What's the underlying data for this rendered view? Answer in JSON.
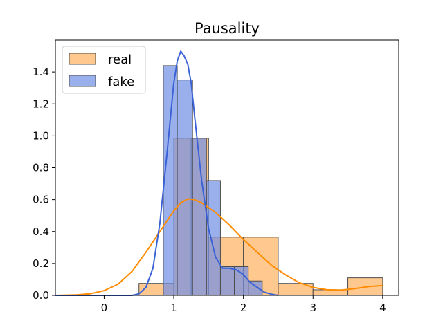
{
  "chart_data": {
    "type": "histogram",
    "title": "Pausality",
    "xlabel": "",
    "ylabel": "",
    "xlim": [
      -0.7,
      4.23
    ],
    "ylim": [
      0,
      1.6
    ],
    "xticks": [
      0,
      1,
      2,
      3,
      4
    ],
    "xtick_labels": [
      "0",
      "1",
      "2",
      "3",
      "4"
    ],
    "yticks": [
      0.0,
      0.2,
      0.4,
      0.6,
      0.8,
      1.0,
      1.2,
      1.4
    ],
    "ytick_labels": [
      "0.0",
      "0.2",
      "0.4",
      "0.6",
      "0.8",
      "1.0",
      "1.2",
      "1.4"
    ],
    "legend_position": "top-left",
    "series": [
      {
        "name": "real",
        "color": "#ffb15e",
        "edge_color": "#4d4d4d",
        "kde_color": "#ff8c00",
        "bins": [
          {
            "x0": 0.5,
            "x1": 1.0,
            "height": 0.075
          },
          {
            "x0": 1.0,
            "x1": 1.25,
            "height": 0.985
          },
          {
            "x0": 1.25,
            "x1": 1.5,
            "height": 0.985
          },
          {
            "x0": 1.5,
            "x1": 2.0,
            "height": 0.365
          },
          {
            "x0": 2.0,
            "x1": 2.5,
            "height": 0.365
          },
          {
            "x0": 2.5,
            "x1": 3.0,
            "height": 0.075
          },
          {
            "x0": 3.0,
            "x1": 3.5,
            "height": 0.035
          },
          {
            "x0": 3.5,
            "x1": 4.0,
            "height": 0.11
          }
        ],
        "kde": {
          "x": [
            -0.7,
            -0.4,
            -0.2,
            0.0,
            0.2,
            0.4,
            0.6,
            0.8,
            1.0,
            1.1,
            1.2,
            1.3,
            1.4,
            1.6,
            1.8,
            2.0,
            2.2,
            2.4,
            2.6,
            2.8,
            3.0,
            3.2,
            3.4,
            3.6,
            3.8,
            4.0
          ],
          "y": [
            0.0,
            0.003,
            0.01,
            0.03,
            0.07,
            0.15,
            0.27,
            0.4,
            0.53,
            0.58,
            0.605,
            0.6,
            0.58,
            0.52,
            0.44,
            0.35,
            0.27,
            0.19,
            0.13,
            0.08,
            0.05,
            0.035,
            0.033,
            0.042,
            0.055,
            0.062
          ]
        }
      },
      {
        "name": "fake",
        "color": "#6f8fe6",
        "edge_color": "#4d4d4d",
        "kde_color": "#3a62d6",
        "bins": [
          {
            "x0": 0.85,
            "x1": 1.05,
            "height": 1.44
          },
          {
            "x0": 1.05,
            "x1": 1.27,
            "height": 1.35
          },
          {
            "x0": 1.27,
            "x1": 1.47,
            "height": 0.985
          },
          {
            "x0": 1.47,
            "x1": 1.67,
            "height": 0.72
          },
          {
            "x0": 1.67,
            "x1": 1.87,
            "height": 0.18
          },
          {
            "x0": 1.87,
            "x1": 2.07,
            "height": 0.18
          },
          {
            "x0": 2.07,
            "x1": 2.27,
            "height": 0.09
          }
        ],
        "kde": {
          "x": [
            -0.7,
            0.0,
            0.4,
            0.5,
            0.6,
            0.7,
            0.8,
            0.9,
            1.0,
            1.05,
            1.1,
            1.15,
            1.2,
            1.25,
            1.3,
            1.4,
            1.5,
            1.6,
            1.7,
            1.8,
            1.9,
            2.0,
            2.1,
            2.2,
            2.3,
            2.4,
            2.5
          ],
          "y": [
            0.0,
            0.0,
            0.0,
            0.01,
            0.05,
            0.17,
            0.45,
            0.88,
            1.33,
            1.47,
            1.53,
            1.5,
            1.45,
            1.33,
            1.12,
            0.72,
            0.42,
            0.24,
            0.17,
            0.17,
            0.16,
            0.13,
            0.08,
            0.05,
            0.02,
            0.008,
            0.0
          ]
        }
      }
    ]
  }
}
